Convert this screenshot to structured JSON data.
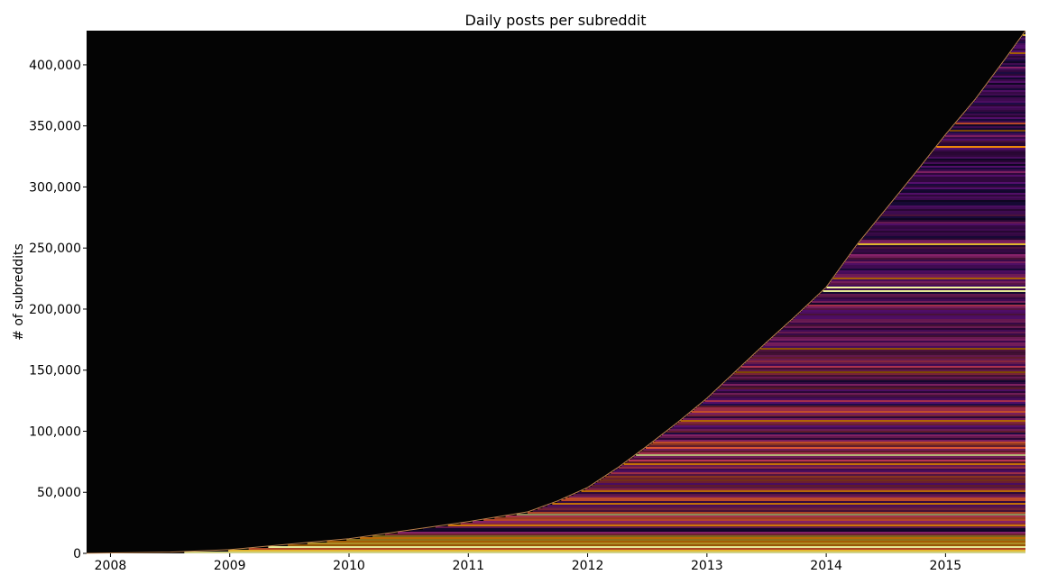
{
  "chart_data": {
    "type": "heatmap",
    "title": "Daily posts per subreddit",
    "xlabel": "",
    "ylabel": "# of subreddits",
    "xlim": [
      2007.8,
      2015.67
    ],
    "ylim": [
      0,
      428000
    ],
    "x_ticks": [
      {
        "value": 2008,
        "label": "2008"
      },
      {
        "value": 2009,
        "label": "2009"
      },
      {
        "value": 2010,
        "label": "2010"
      },
      {
        "value": 2011,
        "label": "2011"
      },
      {
        "value": 2012,
        "label": "2012"
      },
      {
        "value": 2013,
        "label": "2013"
      },
      {
        "value": 2014,
        "label": "2014"
      },
      {
        "value": 2015,
        "label": "2015"
      }
    ],
    "y_ticks": [
      {
        "value": 0,
        "label": "0"
      },
      {
        "value": 50000,
        "label": "50,000"
      },
      {
        "value": 100000,
        "label": "100,000"
      },
      {
        "value": 150000,
        "label": "150,000"
      },
      {
        "value": 200000,
        "label": "200,000"
      },
      {
        "value": 250000,
        "label": "250,000"
      },
      {
        "value": 300000,
        "label": "300,000"
      },
      {
        "value": 350000,
        "label": "350,000"
      },
      {
        "value": 400000,
        "label": "400,000"
      }
    ],
    "subreddit_count_boundary": {
      "x": [
        2007.8,
        2008.5,
        2009.0,
        2009.5,
        2010.0,
        2010.5,
        2011.0,
        2011.5,
        2011.75,
        2012.0,
        2012.25,
        2012.5,
        2012.75,
        2013.0,
        2013.25,
        2013.5,
        2013.75,
        2014.0,
        2014.25,
        2014.5,
        2014.75,
        2015.0,
        2015.25,
        2015.5,
        2015.67
      ],
      "y": [
        0,
        1000,
        3000,
        7500,
        12000,
        19000,
        26000,
        34000,
        43000,
        54000,
        70000,
        88000,
        107000,
        127000,
        150000,
        173000,
        195000,
        218000,
        252000,
        282000,
        312000,
        343000,
        372000,
        405000,
        428000
      ]
    },
    "colormap": [
      "#000004",
      "#1f0c48",
      "#550f6d",
      "#88226a",
      "#ba3655",
      "#e35933",
      "#f98e09",
      "#f9cb35",
      "#fcffa4"
    ],
    "background_color": "#000000",
    "grid": false,
    "legend": "none"
  }
}
